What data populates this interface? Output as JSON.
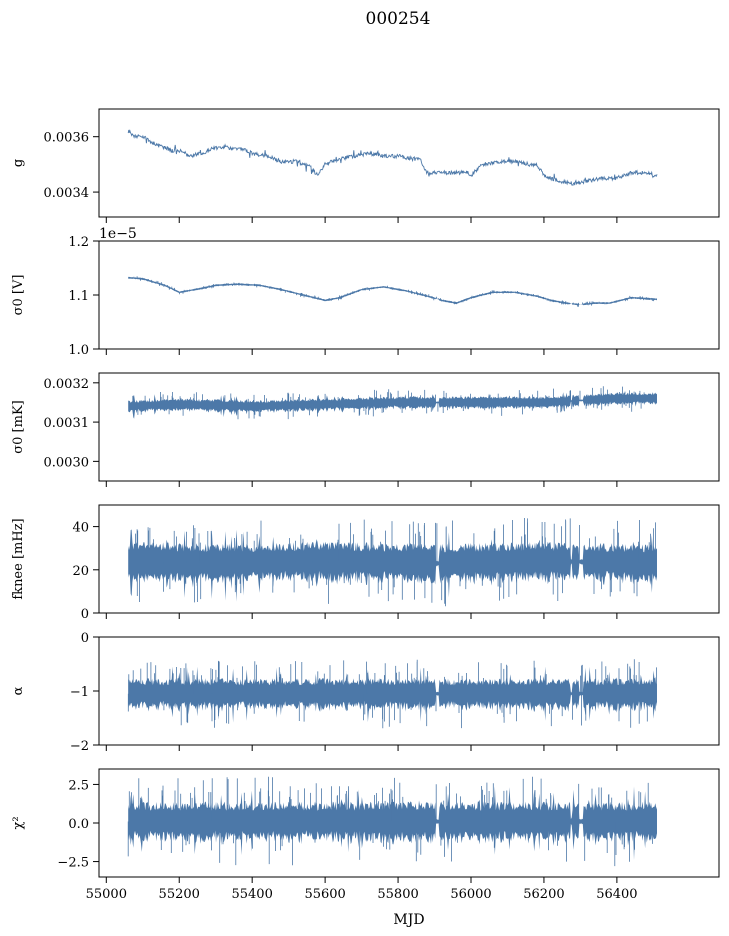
{
  "figure_title": "000254",
  "xlabel": "MJD",
  "chart_data": [
    {
      "type": "line",
      "id": "gain",
      "ylabel": "g",
      "ylim": [
        0.00331,
        0.0037
      ],
      "xlim": [
        54980,
        56680
      ],
      "xticks": [
        "55000",
        "55200",
        "55400",
        "55600",
        "55800",
        "56000",
        "56200",
        "56400"
      ],
      "yticks": [
        {
          "value": 0.0034,
          "label": "0.0034"
        },
        {
          "value": 0.0036,
          "label": "0.0036"
        }
      ],
      "offset_label": "",
      "series": [
        {
          "name": "g",
          "x": [
            55060,
            55080,
            55100,
            55140,
            55180,
            55200,
            55230,
            55260,
            55300,
            55340,
            55380,
            55400,
            55440,
            55480,
            55520,
            55560,
            55580,
            55600,
            55640,
            55680,
            55720,
            55760,
            55800,
            55840,
            55860,
            55880,
            55920,
            55960,
            55990,
            56000,
            56030,
            56080,
            56120,
            56160,
            56180,
            56200,
            56240,
            56280,
            56320,
            56360,
            56400,
            56440,
            56480,
            56510
          ],
          "y": [
            0.00362,
            0.0036,
            0.0036,
            0.00357,
            0.00355,
            0.00355,
            0.00353,
            0.00354,
            0.00356,
            0.00356,
            0.00355,
            0.00354,
            0.00353,
            0.00351,
            0.00351,
            0.00349,
            0.00346,
            0.0035,
            0.00352,
            0.00353,
            0.00354,
            0.00353,
            0.00353,
            0.00352,
            0.00352,
            0.00347,
            0.00347,
            0.00347,
            0.00347,
            0.00346,
            0.0035,
            0.00351,
            0.00351,
            0.0035,
            0.0035,
            0.00346,
            0.00344,
            0.00343,
            0.00344,
            0.00345,
            0.00345,
            0.00347,
            0.00347,
            0.00346
          ],
          "noise": 1e-05
        }
      ]
    },
    {
      "type": "line",
      "id": "sigma_v",
      "ylabel": "σ0 [V]",
      "ylim": [
        1e-05,
        1.2e-05
      ],
      "xlim": [
        54980,
        56680
      ],
      "xticks": [
        "55000",
        "55200",
        "55400",
        "55600",
        "55800",
        "56000",
        "56200",
        "56400"
      ],
      "yticks": [
        {
          "value": 1e-05,
          "label": "1.0"
        },
        {
          "value": 1.1e-05,
          "label": "1.1"
        },
        {
          "value": 1.2e-05,
          "label": "1.2"
        }
      ],
      "offset_label": "1e−5",
      "series": [
        {
          "name": "sigma0_V",
          "x": [
            55060,
            55100,
            55160,
            55200,
            55260,
            55300,
            55360,
            55420,
            55480,
            55540,
            55600,
            55640,
            55700,
            55760,
            55820,
            55880,
            55920,
            55960,
            56000,
            56060,
            56120,
            56180,
            56220,
            56260,
            56300,
            56340,
            56380,
            56440,
            56510
          ],
          "y": [
            1.132e-05,
            1.13e-05,
            1.118e-05,
            1.105e-05,
            1.112e-05,
            1.118e-05,
            1.12e-05,
            1.118e-05,
            1.11e-05,
            1.1e-05,
            1.09e-05,
            1.095e-05,
            1.11e-05,
            1.115e-05,
            1.108e-05,
            1.098e-05,
            1.09e-05,
            1.085e-05,
            1.095e-05,
            1.105e-05,
            1.105e-05,
            1.098e-05,
            1.09e-05,
            1.085e-05,
            1.082e-05,
            1.085e-05,
            1.085e-05,
            1.095e-05,
            1.092e-05
          ],
          "band": 1.5e-08
        }
      ]
    },
    {
      "type": "line",
      "id": "sigma_mk",
      "ylabel": "σ0 [mK]",
      "ylim": [
        0.00295,
        0.003225
      ],
      "xlim": [
        54980,
        56680
      ],
      "xticks": [
        "55000",
        "55200",
        "55400",
        "55600",
        "55800",
        "56000",
        "56200",
        "56400"
      ],
      "yticks": [
        {
          "value": 0.003,
          "label": "0.0030"
        },
        {
          "value": 0.0031,
          "label": "0.0031"
        },
        {
          "value": 0.0032,
          "label": "0.0032"
        }
      ],
      "offset_label": "",
      "series": [
        {
          "name": "sigma0_mK",
          "x": [
            55060,
            55200,
            55400,
            55600,
            55800,
            56000,
            56200,
            56400,
            56510
          ],
          "y": [
            0.00314,
            0.003145,
            0.00314,
            0.003145,
            0.00315,
            0.00315,
            0.00315,
            0.00316,
            0.00316
          ],
          "band": 1.2e-05
        }
      ]
    },
    {
      "type": "line",
      "id": "fknee",
      "ylabel": "fknee [mHz]",
      "ylim": [
        0,
        50
      ],
      "xlim": [
        54980,
        56680
      ],
      "xticks": [
        "55000",
        "55200",
        "55400",
        "55600",
        "55800",
        "56000",
        "56200",
        "56400"
      ],
      "yticks": [
        {
          "value": 0,
          "label": "0"
        },
        {
          "value": 20,
          "label": "20"
        },
        {
          "value": 40,
          "label": "40"
        }
      ],
      "offset_label": "",
      "series": [
        {
          "name": "f_knee",
          "x": [
            55060,
            55300,
            55600,
            55900,
            56200,
            56510
          ],
          "y": [
            24,
            23,
            24,
            23,
            24,
            23
          ],
          "band": 7
        }
      ]
    },
    {
      "type": "line",
      "id": "alpha",
      "ylabel": "α",
      "ylim": [
        -2,
        0
      ],
      "xlim": [
        54980,
        56680
      ],
      "xticks": [
        "55000",
        "55200",
        "55400",
        "55600",
        "55800",
        "56000",
        "56200",
        "56400"
      ],
      "yticks": [
        {
          "value": -2,
          "label": "−2"
        },
        {
          "value": -1,
          "label": "−1"
        },
        {
          "value": 0,
          "label": "0"
        }
      ],
      "offset_label": "",
      "series": [
        {
          "name": "alpha",
          "x": [
            55060,
            55300,
            55600,
            55900,
            56200,
            56510
          ],
          "y": [
            -1.05,
            -1.05,
            -1.05,
            -1.05,
            -1.05,
            -1.05
          ],
          "band": 0.22
        }
      ]
    },
    {
      "type": "line",
      "id": "chi2",
      "ylabel": "χ²",
      "ylim": [
        -3.5,
        3.5
      ],
      "xlim": [
        54980,
        56680
      ],
      "xticks": [
        "55000",
        "55200",
        "55400",
        "55600",
        "55800",
        "56000",
        "56200",
        "56400"
      ],
      "yticks": [
        {
          "value": -2.5,
          "label": "−2.5"
        },
        {
          "value": 0,
          "label": "0.0"
        },
        {
          "value": 2.5,
          "label": "2.5"
        }
      ],
      "offset_label": "",
      "series": [
        {
          "name": "chi2",
          "x": [
            55060,
            55300,
            55600,
            55900,
            56200,
            56510
          ],
          "y": [
            0.1,
            0.1,
            0.1,
            0.1,
            0.1,
            0.1
          ],
          "band": 1.0
        }
      ]
    }
  ]
}
